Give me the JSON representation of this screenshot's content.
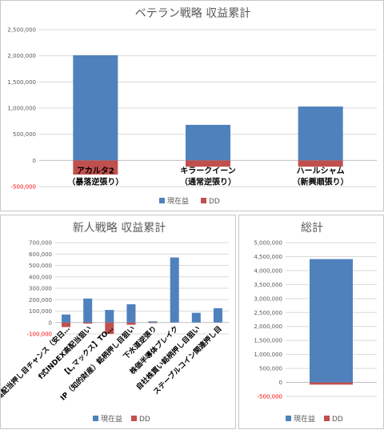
{
  "colors": {
    "profit": "#4f81bd",
    "dd": "#c0504d"
  },
  "legend": {
    "profit_label": "現在益",
    "dd_label": "DD"
  },
  "chart_data": [
    {
      "type": "bar",
      "title": "ベテラン戦略 収益累計",
      "categories": [
        "アカルタ2\n（暴落逆張り）",
        "キラークイーン\n（通常逆張り）",
        "ハールシャム\n（新興順張り）"
      ],
      "series": [
        {
          "name": "現在益",
          "values": [
            2010000,
            680000,
            1030000
          ]
        },
        {
          "name": "DD",
          "values": [
            -270000,
            -120000,
            -120000
          ]
        }
      ],
      "ylim": [
        -500000,
        2500000
      ],
      "yticks": [
        -500000,
        0,
        500000,
        1000000,
        1500000,
        2000000,
        2500000
      ],
      "ytick_labels": [
        "-500,000",
        "0",
        "500,000",
        "1,000,000",
        "1,500,000",
        "2,000,000",
        "2,500,000"
      ],
      "grid": true,
      "legend": "bottom"
    },
    {
      "type": "bar",
      "title": "新人戦略 収益累計",
      "categories": [
        "高配当押し目チャンス（安日…",
        "f式INDEX高配当狙い",
        "【L,マックス】TO…",
        "IP（知的財産）銘柄押し目狙い",
        "下水道逆張り",
        "株価半導体ブレイク",
        "自社株買い銘柄押し目狙い",
        "ステーブルコイン関連押し目"
      ],
      "series": [
        {
          "name": "現在益",
          "values": [
            70000,
            210000,
            110000,
            160000,
            10000,
            570000,
            85000,
            125000
          ]
        },
        {
          "name": "DD",
          "values": [
            -40000,
            -10000,
            -100000,
            -20000,
            -5000,
            0,
            0,
            0
          ]
        }
      ],
      "ylim": [
        -100000,
        700000
      ],
      "yticks": [
        -100000,
        0,
        100000,
        200000,
        300000,
        400000,
        500000,
        600000,
        700000
      ],
      "ytick_labels": [
        "-100,000",
        "0",
        "100,000",
        "200,000",
        "300,000",
        "400,000",
        "500,000",
        "600,000",
        "700,000"
      ],
      "grid": true,
      "legend": "bottom"
    },
    {
      "type": "bar",
      "title": "総計",
      "categories": [
        ""
      ],
      "series": [
        {
          "name": "現在益",
          "values": [
            4410000
          ]
        },
        {
          "name": "DD",
          "values": [
            -80000
          ]
        }
      ],
      "ylim": [
        -500000,
        5000000
      ],
      "yticks": [
        -500000,
        0,
        500000,
        1000000,
        1500000,
        2000000,
        2500000,
        3000000,
        3500000,
        4000000,
        4500000,
        5000000
      ],
      "ytick_labels": [
        "-500,000",
        "0",
        "500,000",
        "1,000,000",
        "1,500,000",
        "2,000,000",
        "2,500,000",
        "3,000,000",
        "3,500,000",
        "4,000,000",
        "4,500,000",
        "5,000,000"
      ],
      "grid": true,
      "legend": "bottom"
    }
  ]
}
